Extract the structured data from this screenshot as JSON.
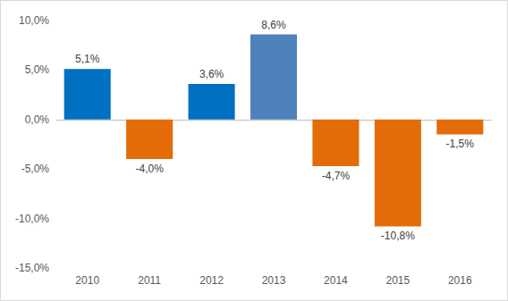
{
  "chart_data": {
    "type": "bar",
    "categories": [
      "2010",
      "2011",
      "2012",
      "2013",
      "2014",
      "2015",
      "2016"
    ],
    "values": [
      5.1,
      -4.0,
      3.6,
      8.6,
      -4.7,
      -10.8,
      -1.5
    ],
    "value_labels": [
      "5,1%",
      "-4,0%",
      "3,6%",
      "8,6%",
      "-4,7%",
      "-10,8%",
      "-1,5%"
    ],
    "colors": [
      "#0070c0",
      "#e36c09",
      "#0070c0",
      "#4f81bd",
      "#e36c09",
      "#e36c09",
      "#e36c09"
    ],
    "ylim": [
      -15,
      10
    ],
    "yticks": [
      {
        "value": -15,
        "label": "-15,0%"
      },
      {
        "value": -10,
        "label": "-10,0%"
      },
      {
        "value": -5,
        "label": "-5,0%"
      },
      {
        "value": 0,
        "label": "0,0%"
      },
      {
        "value": 5,
        "label": "5,0%"
      },
      {
        "value": 10,
        "label": "10,0%"
      }
    ],
    "grid": false,
    "data_labels": true
  }
}
